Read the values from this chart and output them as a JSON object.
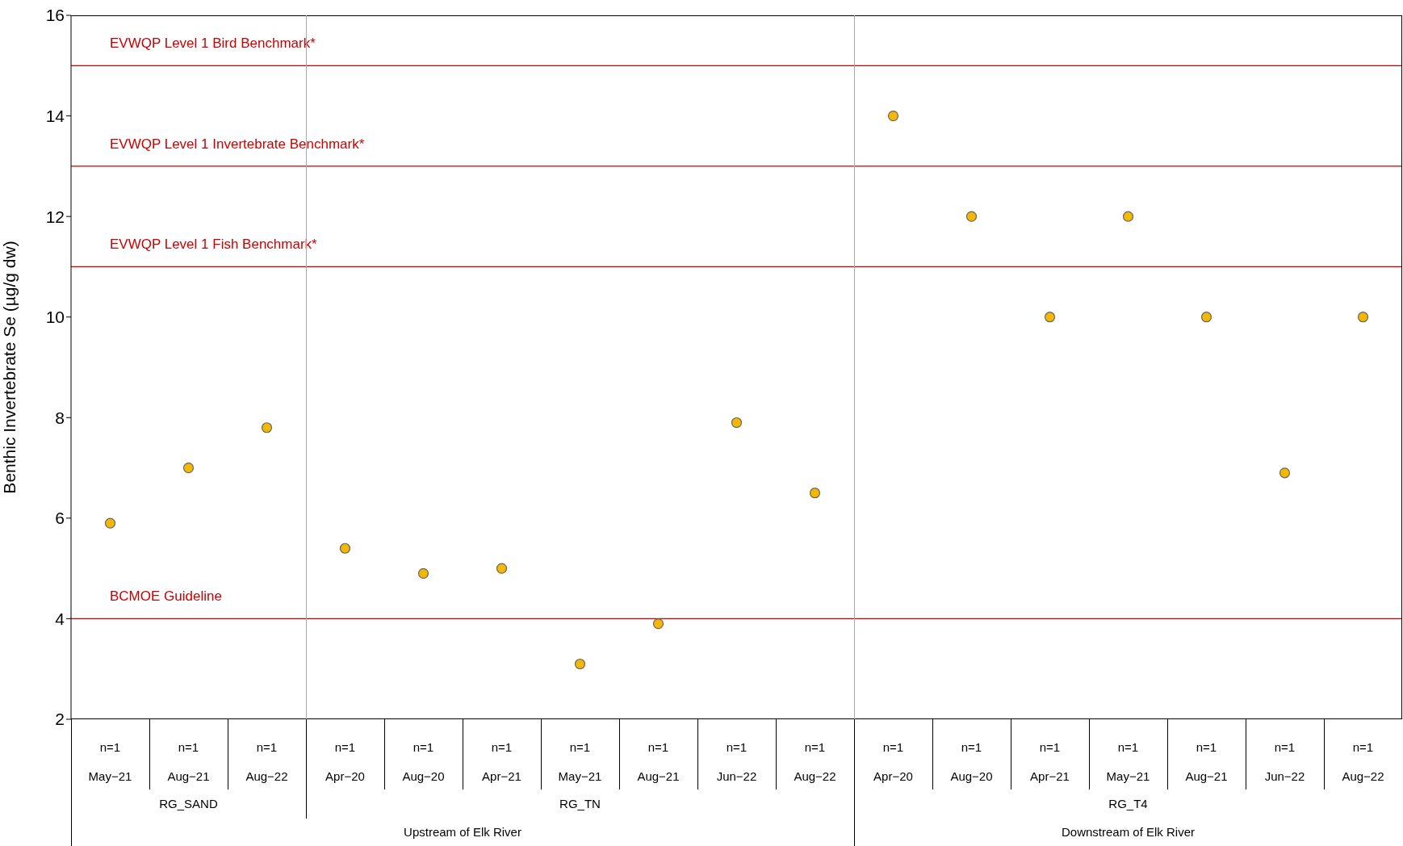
{
  "chart_data": {
    "type": "scatter",
    "ylabel": "Benthic Invertebrate Se (µg/g dw)",
    "categories": [
      "May−21",
      "Aug−21",
      "Aug−22",
      "Apr−20",
      "Aug−20",
      "Apr−21",
      "May−21",
      "Aug−21",
      "Jun−22",
      "Aug−22",
      "Apr−20",
      "Aug−20",
      "Apr−21",
      "May−21",
      "Aug−21",
      "Jun−22",
      "Aug−22"
    ],
    "values": [
      5.9,
      7.0,
      7.8,
      5.4,
      4.9,
      5.0,
      3.1,
      3.9,
      7.9,
      6.5,
      14,
      12,
      10,
      12,
      10,
      6.9,
      10
    ],
    "color": "#f5b800",
    "marker": "circle",
    "grid": false,
    "legend": false,
    "ylim": [
      2,
      16
    ],
    "yticks": [
      2,
      4,
      6,
      8,
      10,
      12,
      14,
      16
    ],
    "ref_lines": [
      {
        "axis": "y",
        "value": 15,
        "label": "EVWQP Level 1 Bird Benchmark*",
        "color": "#cc0000"
      },
      {
        "axis": "y",
        "value": 13,
        "label": "EVWQP Level 1 Invertebrate Benchmark*",
        "color": "#cc0000"
      },
      {
        "axis": "y",
        "value": 11,
        "label": "EVWQP Level 1 Fish Benchmark*",
        "color": "#cc0000"
      },
      {
        "axis": "y",
        "value": 4,
        "label": "BCMOE Guideline",
        "color": "#cc0000"
      }
    ],
    "annotations": [
      "n=1",
      "n=1",
      "n=1",
      "n=1",
      "n=1",
      "n=1",
      "n=1",
      "n=1",
      "n=1",
      "n=1",
      "n=1",
      "n=1",
      "n=1",
      "n=1",
      "n=1",
      "n=1",
      "n=1",
      "RG_SAND",
      "RG_TN",
      "RG_T4",
      "Upstream of Elk River",
      "Downstream of Elk River"
    ]
  }
}
